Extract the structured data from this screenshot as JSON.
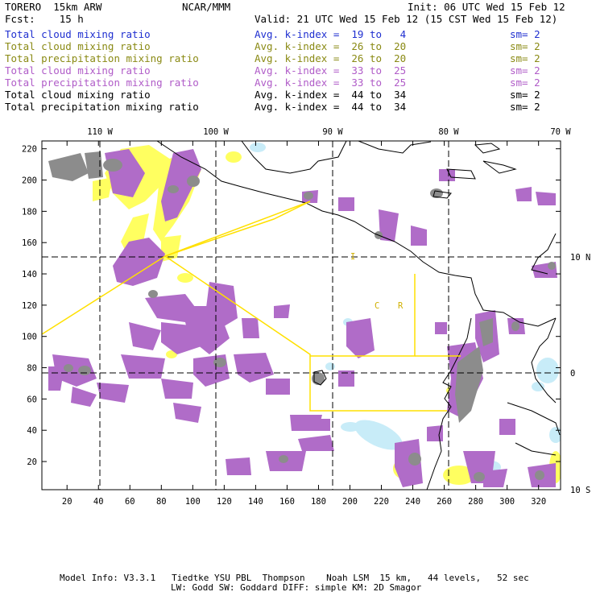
{
  "header": {
    "model": "TORERO  15km ARW",
    "org": "NCAR/MMM",
    "init": "Init: 06 UTC Wed 15 Feb 12",
    "fcst": "Fcst:    15 h",
    "valid": "Valid: 21 UTC Wed 15 Feb 12 (15 CST Wed 15 Feb 12)"
  },
  "legend": [
    {
      "label": "Total cloud mixing ratio",
      "range": "Avg. k-index =  19 to   4",
      "sm": "sm= 2",
      "color": "#1f2fd0"
    },
    {
      "label": "Total cloud mixing ratio",
      "range": "Avg. k-index =  26 to  20",
      "sm": "sm= 2",
      "color": "#8a8a14"
    },
    {
      "label": "Total precipitation mixing ratio",
      "range": "Avg. k-index =  26 to  20",
      "sm": "sm= 2",
      "color": "#8a8a14"
    },
    {
      "label": "Total cloud mixing ratio",
      "range": "Avg. k-index =  33 to  25",
      "sm": "sm= 2",
      "color": "#b05cc8"
    },
    {
      "label": "Total precipitation mixing ratio",
      "range": "Avg. k-index =  33 to  25",
      "sm": "sm= 2",
      "color": "#b05cc8"
    },
    {
      "label": "Total cloud mixing ratio",
      "range": "Avg. k-index =  44 to  34",
      "sm": "sm= 2",
      "color": "#000000"
    },
    {
      "label": "Total precipitation mixing ratio",
      "range": "Avg. k-index =  44 to  34",
      "sm": "sm= 2",
      "color": "#000000"
    }
  ],
  "map": {
    "lon_labels": [
      "110 W",
      "100 W",
      "90 W",
      "80 W",
      "70 W"
    ],
    "lat_labels": [
      "10 N",
      "0",
      "10 S"
    ],
    "x_ticks": [
      "20",
      "40",
      "60",
      "80",
      "100",
      "120",
      "140",
      "160",
      "180",
      "200",
      "220",
      "240",
      "260",
      "280",
      "300",
      "320"
    ],
    "y_ticks": [
      "220",
      "200",
      "180",
      "160",
      "140",
      "120",
      "100",
      "80",
      "60",
      "40",
      "20"
    ],
    "region_labels": {
      "a": "I",
      "b": "C",
      "c": "R"
    },
    "colors": {
      "purple": "#b06cc8",
      "yellow": "#ffff60",
      "gray": "#8c8c8c",
      "lightblue": "#c8ecf8",
      "frame": "#000000",
      "grid": "#000000",
      "region": "#ffe000"
    }
  },
  "footer": {
    "line1": "Model Info: V3.3.1   Tiedtke YSU PBL  Thompson    Noah LSM  15 km,   44 levels,   52 sec",
    "line2": "LW: Godd SW: Goddard DIFF: simple KM: 2D Smagor"
  }
}
